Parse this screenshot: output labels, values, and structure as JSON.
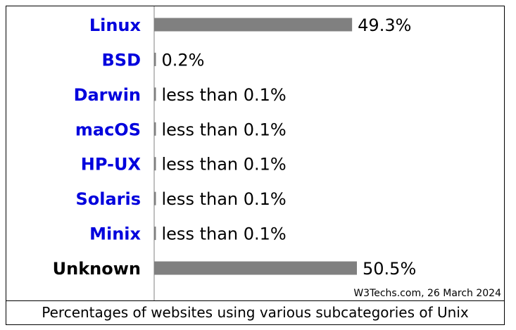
{
  "chart_data": {
    "type": "bar",
    "orientation": "horizontal",
    "categories": [
      "Linux",
      "BSD",
      "Darwin",
      "macOS",
      "HP-UX",
      "Solaris",
      "Minix",
      "Unknown"
    ],
    "values": [
      49.3,
      0.2,
      0.05,
      0.05,
      0.05,
      0.05,
      0.05,
      50.5
    ],
    "value_labels": [
      "49.3%",
      "0.2%",
      "less than 0.1%",
      "less than 0.1%",
      "less than 0.1%",
      "less than 0.1%",
      "less than 0.1%",
      "50.5%"
    ],
    "category_colors": [
      "#0000dd",
      "#0000dd",
      "#0000dd",
      "#0000dd",
      "#0000dd",
      "#0000dd",
      "#0000dd",
      "#000000"
    ],
    "bar_color": "#808080",
    "xlim": [
      0,
      50.5
    ],
    "grid": false,
    "credit": "W3Techs.com, 26 March 2024",
    "caption": "Percentages of websites using various subcategories of Unix"
  }
}
